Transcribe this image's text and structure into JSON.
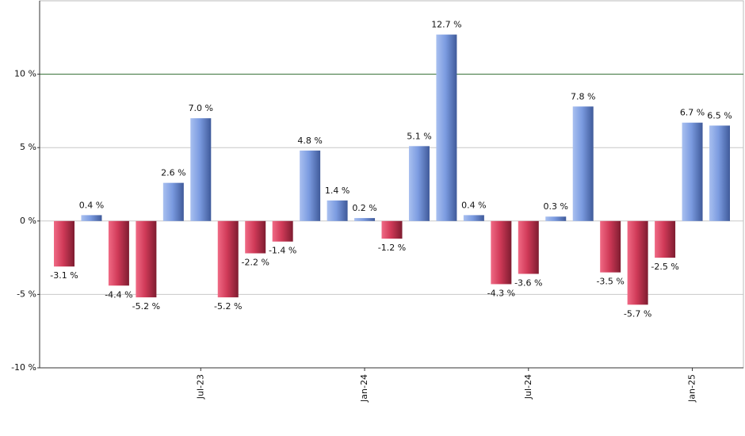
{
  "chart_data": {
    "type": "bar",
    "categories": [
      null,
      null,
      null,
      null,
      null,
      "Jul-23",
      null,
      null,
      null,
      null,
      null,
      "Jan-24",
      null,
      null,
      null,
      null,
      null,
      "Jul-24",
      null,
      null,
      null,
      null,
      null,
      "Jan-25",
      null
    ],
    "values": [
      -3.1,
      0.4,
      -4.4,
      -5.2,
      2.6,
      7.0,
      -5.2,
      -2.2,
      -1.4,
      4.8,
      1.4,
      0.2,
      -1.2,
      5.1,
      12.7,
      0.4,
      -4.3,
      -3.6,
      0.3,
      7.8,
      -3.5,
      -5.7,
      -2.5,
      6.7,
      6.5
    ],
    "value_labels": [
      "-3.1 %",
      "0.4 %",
      "-4.4 %",
      "-5.2 %",
      "2.6 %",
      "7.0 %",
      "-5.2 %",
      "-2.2 %",
      "-1.4 %",
      "4.8 %",
      "1.4 %",
      "0.2 %",
      "-1.2 %",
      "5.1 %",
      "12.7 %",
      "0.4 %",
      "-4.3 %",
      "-3.6 %",
      "0.3 %",
      "7.8 %",
      "-3.5 %",
      "-5.7 %",
      "-2.5 %",
      "6.7 %",
      "6.5 %"
    ],
    "positive_color": "#6f8fd4",
    "negative_color": "#c83452",
    "ylim": [
      -10,
      15
    ],
    "yticks": [
      {
        "value": -10,
        "label": "-10 %"
      },
      {
        "value": -5,
        "label": "-5 %"
      },
      {
        "value": 0,
        "label": "0 %"
      },
      {
        "value": 5,
        "label": "5 %"
      },
      {
        "value": 10,
        "label": "10 %"
      }
    ],
    "grid": true,
    "highlight_tick": 10,
    "highlight_color": "#2f6b2f"
  }
}
